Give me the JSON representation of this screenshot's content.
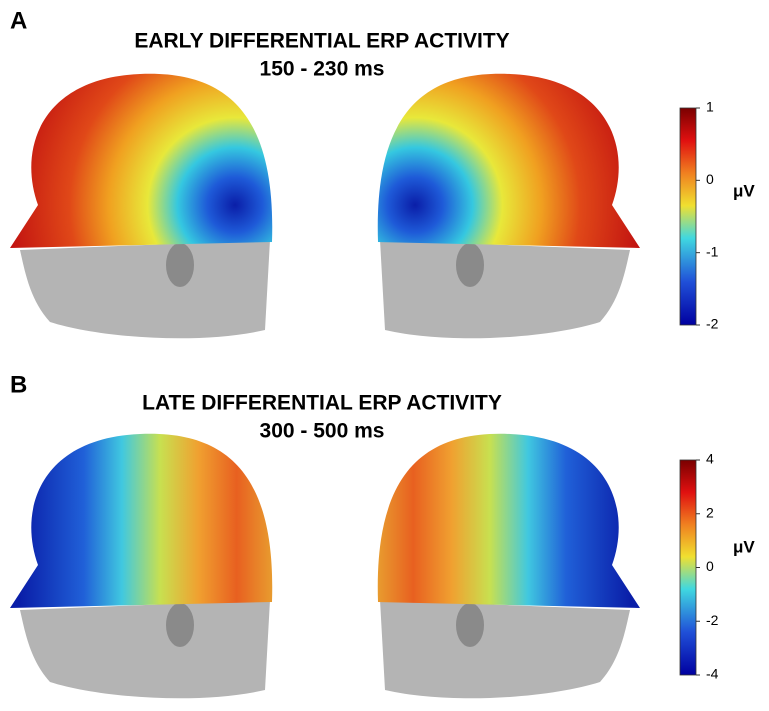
{
  "panels": [
    {
      "label": "A",
      "title": "EARLY DIFFERENTIAL ERP ACTIVITY",
      "time": "150 - 230 ms",
      "colorbar": {
        "ticks": [
          1,
          0,
          -1,
          -2
        ],
        "unit": "μV"
      }
    },
    {
      "label": "B",
      "title": "LATE DIFFERENTIAL ERP ACTIVITY",
      "time": "300 - 500 ms",
      "colorbar": {
        "ticks": [
          4,
          2,
          0,
          -2,
          -4
        ],
        "unit": "μV"
      }
    }
  ]
}
